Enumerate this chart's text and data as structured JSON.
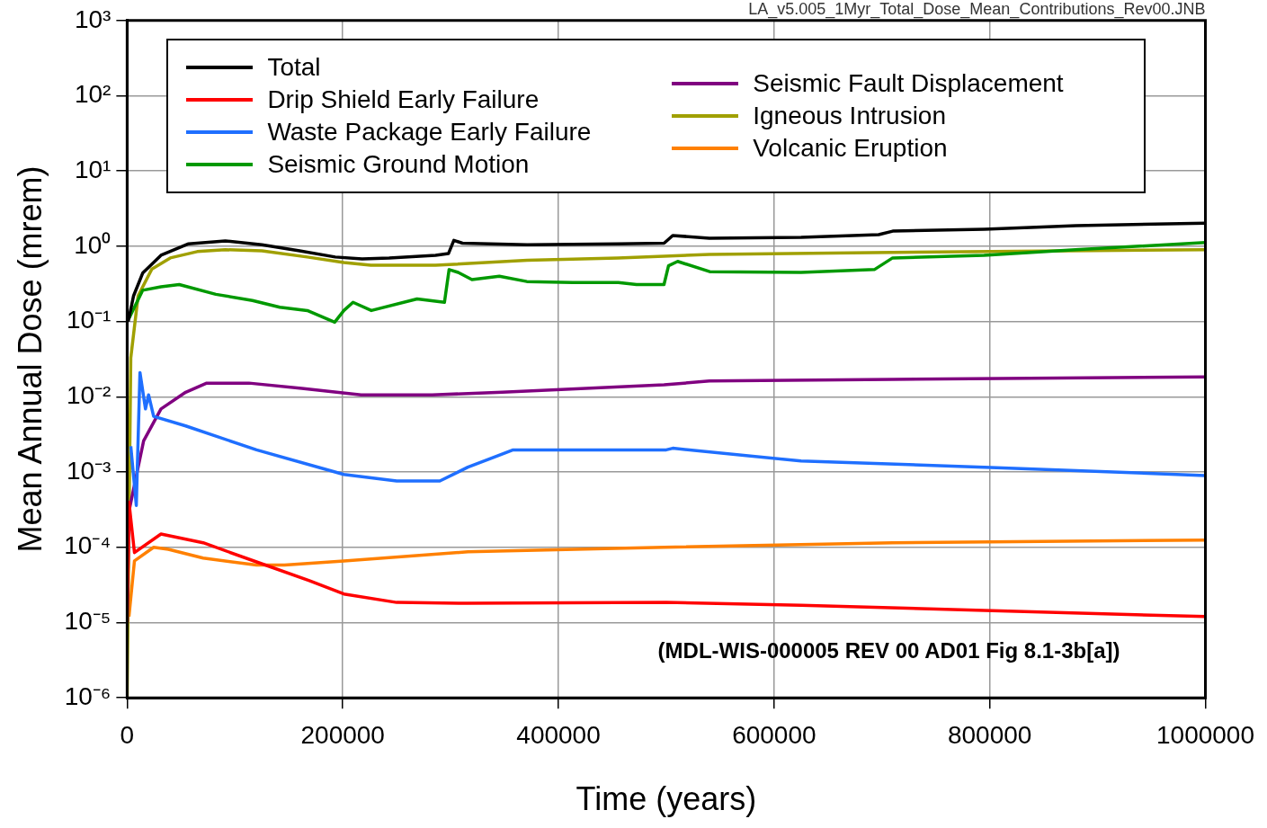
{
  "chart_data": {
    "type": "line",
    "xlabel": "Time (years)",
    "ylabel": "Mean Annual Dose (mrem)",
    "annotations": [
      "LA_v5.005_1Myr_Total_Dose_Mean_Contributions_Rev00.JNB",
      "(MDL-WIS-000005 REV 00 AD01 Fig 8.1-3b[a])"
    ],
    "xlim": [
      0,
      1000000
    ],
    "xticks": [
      0,
      200000,
      400000,
      600000,
      800000,
      1000000
    ],
    "ylim": [
      1e-06,
      1000
    ],
    "yticks": [
      {
        "value": 1000,
        "label": "10³"
      },
      {
        "value": 100,
        "label": "10²"
      },
      {
        "value": 10,
        "label": "10¹"
      },
      {
        "value": 1,
        "label": "10⁰"
      },
      {
        "value": 0.1,
        "label": "10⁻¹"
      },
      {
        "value": 0.01,
        "label": "10⁻²"
      },
      {
        "value": 0.001,
        "label": "10⁻³"
      },
      {
        "value": 0.0001,
        "label": "10⁻⁴"
      },
      {
        "value": 1e-05,
        "label": "10⁻⁵"
      },
      {
        "value": 1e-06,
        "label": "10⁻⁶"
      }
    ],
    "log": "y",
    "grid": true,
    "legend": "top",
    "marker": "none",
    "line_style": "solid",
    "series": [
      {
        "name": "Total",
        "color": "#000000",
        "x": [
          1000,
          6000,
          14400,
          31400,
          57000,
          91000,
          125000,
          160000,
          193000,
          218000,
          243000,
          286000,
          298000,
          303000,
          311000,
          371000,
          455000,
          498000,
          506000,
          540000,
          625000,
          697000,
          710000,
          795000,
          880000,
          1000000
        ],
        "values": [
          0.1,
          0.22,
          0.44,
          0.76,
          1.08,
          1.18,
          1.05,
          0.87,
          0.72,
          0.68,
          0.7,
          0.76,
          0.8,
          1.2,
          1.1,
          1.05,
          1.08,
          1.1,
          1.39,
          1.28,
          1.31,
          1.43,
          1.59,
          1.68,
          1.88,
          2.03
        ]
      },
      {
        "name": "Drip Shield Early Failure",
        "color": "#ff0000",
        "x": [
          0,
          1700,
          6800,
          31400,
          70500,
          120000,
          169000,
          201000,
          250000,
          315000,
          500000,
          625000,
          795000,
          1000000
        ],
        "values": [
          1e-05,
          0.0004,
          8.5e-05,
          0.00015,
          0.000115,
          6.4e-05,
          3.6e-05,
          2.4e-05,
          1.85e-05,
          1.8e-05,
          1.85e-05,
          1.7e-05,
          1.45e-05,
          1.2e-05
        ]
      },
      {
        "name": "Waste Package Early Failure",
        "color": "#1f6fff",
        "x": [
          3400,
          8500,
          11900,
          17000,
          19900,
          24600,
          54300,
          120000,
          201000,
          250000,
          290000,
          316000,
          358000,
          500000,
          506000,
          625000,
          795000,
          1000000
        ],
        "values": [
          0.0022,
          0.00036,
          0.021,
          0.0069,
          0.0106,
          0.0055,
          0.0041,
          0.00197,
          0.00093,
          0.00076,
          0.00076,
          0.00116,
          0.00197,
          0.00197,
          0.00207,
          0.0014,
          0.00116,
          0.0009
        ]
      },
      {
        "name": "Seismic Ground Motion",
        "color": "#009900",
        "x": [
          1700,
          14400,
          31400,
          48300,
          82300,
          116200,
          141600,
          167100,
          192500,
          201000,
          209500,
          226500,
          268900,
          294300,
          298600,
          307000,
          319800,
          345200,
          370700,
          413100,
          455500,
          472400,
          497900,
          502100,
          510600,
          540300,
          625100,
          693000,
          709900,
          794700,
          879600,
          1000000
        ],
        "values": [
          0.11,
          0.26,
          0.29,
          0.31,
          0.23,
          0.19,
          0.155,
          0.14,
          0.098,
          0.14,
          0.18,
          0.14,
          0.2,
          0.18,
          0.49,
          0.45,
          0.36,
          0.4,
          0.34,
          0.33,
          0.33,
          0.31,
          0.31,
          0.55,
          0.63,
          0.46,
          0.45,
          0.49,
          0.7,
          0.76,
          0.9,
          1.12
        ]
      },
      {
        "name": "Seismic Fault Displacement",
        "color": "#800080",
        "x": [
          0,
          1700,
          15300,
          31400,
          54300,
          73800,
          113000,
          162000,
          217000,
          283000,
          348000,
          498000,
          540000,
          710000,
          1000000
        ],
        "values": [
          1e-05,
          0.0003,
          0.0026,
          0.0069,
          0.0115,
          0.0152,
          0.0152,
          0.0129,
          0.0106,
          0.0106,
          0.0115,
          0.0144,
          0.0162,
          0.017,
          0.0184
        ]
      },
      {
        "name": "Igneous Intrusion",
        "color": "#a0a000",
        "x": [
          0,
          3400,
          10200,
          23000,
          40000,
          65000,
          91000,
          125000,
          167000,
          201000,
          226000,
          286000,
          371000,
          455000,
          540000,
          710000,
          1000000
        ],
        "values": [
          1e-06,
          0.033,
          0.22,
          0.5,
          0.7,
          0.85,
          0.9,
          0.87,
          0.72,
          0.61,
          0.56,
          0.56,
          0.65,
          0.7,
          0.78,
          0.83,
          0.9
        ]
      },
      {
        "name": "Volcanic Eruption",
        "color": "#ff8000",
        "x": [
          1700,
          6800,
          24600,
          38200,
          70500,
          120000,
          146000,
          201000,
          316000,
          498000,
          710000,
          1000000
        ],
        "values": [
          1.2e-05,
          6.6e-05,
          0.0001,
          9.4e-05,
          7.2e-05,
          5.8e-05,
          5.8e-05,
          6.6e-05,
          8.7e-05,
          0.0001,
          0.000115,
          0.000125
        ]
      }
    ]
  }
}
